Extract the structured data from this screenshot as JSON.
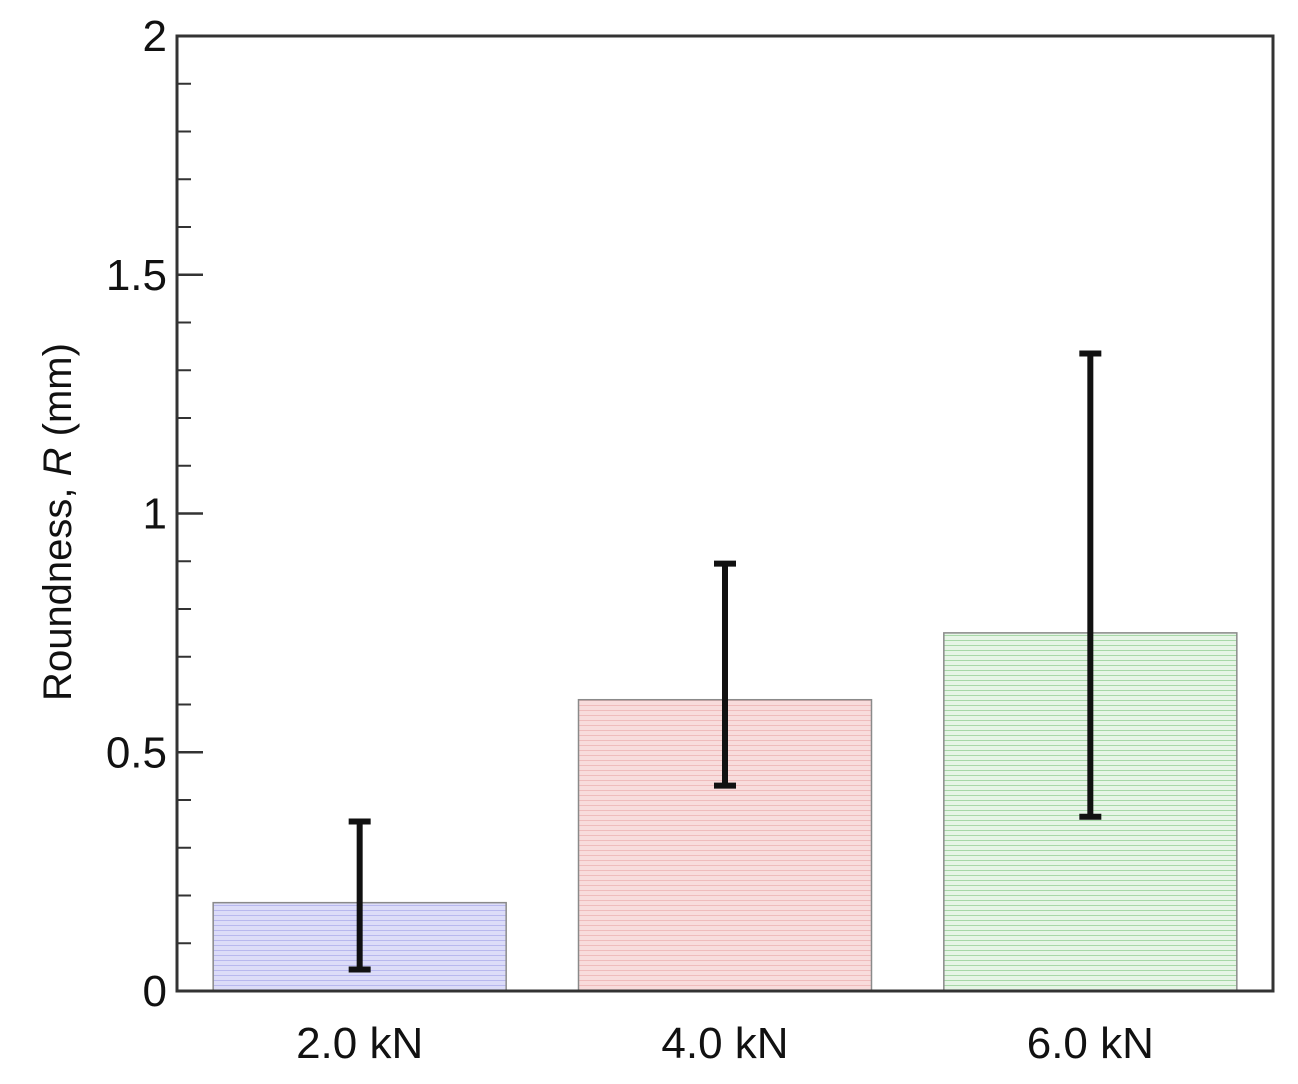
{
  "chart_data": {
    "type": "bar",
    "categories": [
      "2.0 kN",
      "4.0 kN",
      "6.0 kN"
    ],
    "values": [
      0.185,
      0.61,
      0.75
    ],
    "error_low": [
      0.045,
      0.43,
      0.365
    ],
    "error_high": [
      0.355,
      0.895,
      1.335
    ],
    "colors": [
      "#dcdcf8",
      "#f8dcdc",
      "#e6f5e6"
    ],
    "hatch_colors": [
      "#b8b8ee",
      "#efbcbc",
      "#a8d8a8"
    ],
    "ylabel_prefix": "Roundness, ",
    "ylabel_symbol": "R",
    "ylabel_suffix": " (mm)",
    "ylim": [
      0,
      2
    ],
    "yticks": [
      0,
      0.5,
      1,
      1.5,
      2
    ],
    "ytick_labels": [
      "0",
      "0.5",
      "1",
      "1.5",
      "2"
    ],
    "minor_step": 0.1,
    "grid": false
  }
}
